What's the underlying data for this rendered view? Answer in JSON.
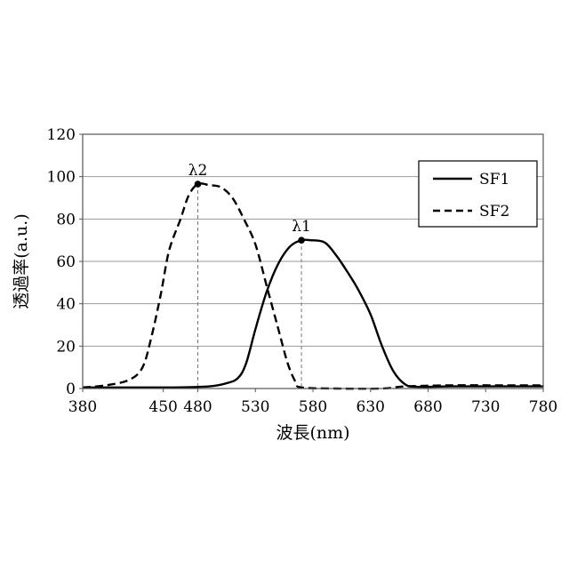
{
  "chart_data": {
    "type": "line",
    "title": "",
    "xlabel": "波長(nm)",
    "ylabel": "透過率(a.u.)",
    "xlim": [
      380,
      780
    ],
    "ylim": [
      0,
      120
    ],
    "xticks": [
      380,
      450,
      480,
      530,
      580,
      630,
      680,
      730,
      780
    ],
    "yticks": [
      0,
      20,
      40,
      60,
      80,
      100,
      120
    ],
    "grid": "horizontal",
    "legend_position": "top-right",
    "series": [
      {
        "name": "SF1",
        "line_style": "solid",
        "color": "#000000",
        "points": [
          [
            380,
            0.5
          ],
          [
            420,
            0.5
          ],
          [
            460,
            0.5
          ],
          [
            490,
            1
          ],
          [
            505,
            2.5
          ],
          [
            515,
            5
          ],
          [
            522,
            12
          ],
          [
            530,
            28
          ],
          [
            540,
            46
          ],
          [
            550,
            59
          ],
          [
            560,
            67
          ],
          [
            570,
            70
          ],
          [
            578,
            70
          ],
          [
            590,
            69
          ],
          [
            600,
            63
          ],
          [
            610,
            55
          ],
          [
            620,
            46
          ],
          [
            630,
            35
          ],
          [
            640,
            20
          ],
          [
            650,
            8
          ],
          [
            660,
            2
          ],
          [
            670,
            0.8
          ],
          [
            700,
            1
          ],
          [
            740,
            1
          ],
          [
            780,
            1
          ]
        ]
      },
      {
        "name": "SF2",
        "line_style": "dashed",
        "color": "#000000",
        "points": [
          [
            380,
            0.5
          ],
          [
            400,
            1.5
          ],
          [
            420,
            4
          ],
          [
            432,
            10
          ],
          [
            440,
            25
          ],
          [
            448,
            45
          ],
          [
            455,
            65
          ],
          [
            465,
            80
          ],
          [
            472,
            91
          ],
          [
            480,
            96.5
          ],
          [
            490,
            96
          ],
          [
            500,
            95
          ],
          [
            510,
            90
          ],
          [
            520,
            80
          ],
          [
            530,
            68
          ],
          [
            540,
            48
          ],
          [
            550,
            28
          ],
          [
            558,
            12
          ],
          [
            565,
            3
          ],
          [
            570,
            0.5
          ],
          [
            600,
            0
          ],
          [
            640,
            0
          ],
          [
            660,
            1
          ],
          [
            700,
            1.5
          ],
          [
            740,
            1.5
          ],
          [
            780,
            1.5
          ]
        ]
      }
    ],
    "annotations": [
      {
        "label": "λ1",
        "x": 570,
        "y": 70
      },
      {
        "label": "λ2",
        "x": 480,
        "y": 96.5
      }
    ]
  }
}
